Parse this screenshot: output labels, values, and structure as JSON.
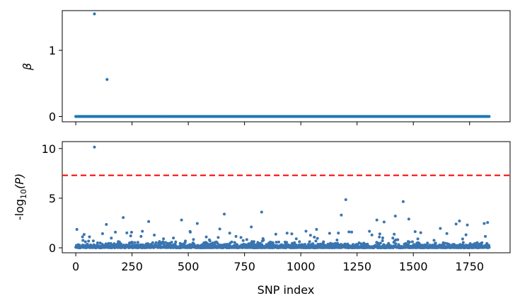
{
  "chart_data": [
    {
      "type": "scatter",
      "ylabel": "β",
      "xlim": [
        -60,
        1930
      ],
      "ylim": [
        -0.08,
        1.6
      ],
      "yticks": [
        0,
        1
      ],
      "xticks": [
        0,
        250,
        500,
        750,
        1000,
        1250,
        1500,
        1750
      ],
      "x_tick_labels_shown": false,
      "n_points": 1838,
      "baseline_value": 0,
      "nonzero_points": [
        {
          "x": 83,
          "y": 1.55
        },
        {
          "x": 139,
          "y": 0.56
        }
      ],
      "color": "#1f77b4"
    },
    {
      "type": "scatter",
      "ylabel": "-log10(P)",
      "xlabel": "SNP index",
      "xlim": [
        -60,
        1930
      ],
      "ylim": [
        -0.5,
        10.7
      ],
      "yticks": [
        0,
        5,
        10
      ],
      "xticks": [
        0,
        250,
        500,
        750,
        1000,
        1250,
        1500,
        1750
      ],
      "threshold": {
        "y": 7.3,
        "color": "#ff0000",
        "style": "dashed"
      },
      "n_points": 1838,
      "highlighted_points": [
        {
          "x": 83,
          "y": 10.15
        },
        {
          "x": 1200,
          "y": 4.85
        },
        {
          "x": 1455,
          "y": 4.65
        },
        {
          "x": 826,
          "y": 3.6
        },
        {
          "x": 1180,
          "y": 3.3
        },
        {
          "x": 660,
          "y": 3.4
        },
        {
          "x": 211,
          "y": 3.05
        },
        {
          "x": 1420,
          "y": 3.2
        },
        {
          "x": 1338,
          "y": 2.8
        },
        {
          "x": 1480,
          "y": 2.9
        },
        {
          "x": 470,
          "y": 2.8
        },
        {
          "x": 1370,
          "y": 2.6
        },
        {
          "x": 324,
          "y": 2.65
        },
        {
          "x": 1705,
          "y": 2.7
        },
        {
          "x": 1830,
          "y": 2.55
        },
        {
          "x": 136,
          "y": 2.35
        },
        {
          "x": 540,
          "y": 2.45
        },
        {
          "x": 1740,
          "y": 2.3
        },
        {
          "x": 1815,
          "y": 2.45
        },
        {
          "x": 1690,
          "y": 2.4
        },
        {
          "x": 780,
          "y": 2.1
        },
        {
          "x": 1620,
          "y": 1.95
        },
        {
          "x": 1070,
          "y": 1.85
        },
        {
          "x": 640,
          "y": 1.9
        },
        {
          "x": 5,
          "y": 1.85
        }
      ],
      "color": "#3a75b0"
    }
  ],
  "axes": {
    "top": {
      "ytick_labels": [
        "0",
        "1"
      ],
      "ylabel": "β"
    },
    "bottom": {
      "ytick_labels": [
        "0",
        "5",
        "10"
      ],
      "xtick_labels": [
        "0",
        "250",
        "500",
        "750",
        "1000",
        "1250",
        "1500",
        "1750"
      ],
      "ylabel_prefix": "-log",
      "ylabel_sub": "10",
      "ylabel_suffix": "(P)",
      "xlabel": "SNP index"
    }
  }
}
